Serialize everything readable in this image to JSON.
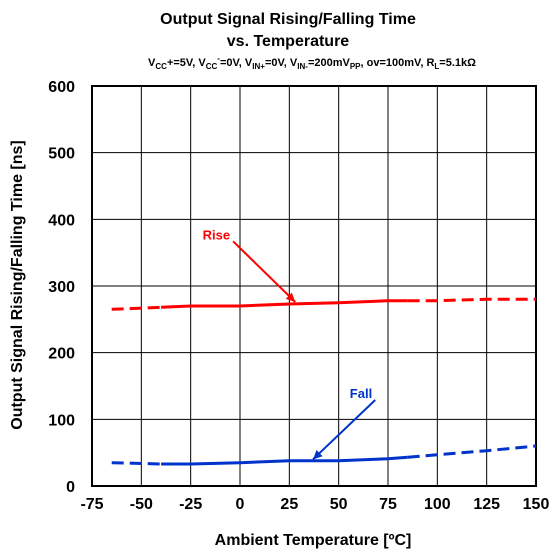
{
  "chart_data": {
    "type": "line",
    "title_line1": "Output Signal Rising/Falling Time",
    "title_line2": "vs. Temperature",
    "conditions": {
      "p1": "V",
      "p1_sub": "CC",
      "p2": "+=5V, V",
      "p2_sub": "CC",
      "p2_sup": "-",
      "p3": "=0V, V",
      "p3_sub": "IN+",
      "p4": "=0V, V",
      "p4_sub": "IN-",
      "p5": "=200mV",
      "p5_sub": "PP",
      "p6": ", ov=100mV, R",
      "p6_sub": "L",
      "p7": "=5.1kΩ"
    },
    "xlabel": "Ambient Temperature [ºC]",
    "ylabel": "Output Signal Rising/Falling Time [ns]",
    "xlim": [
      -75,
      150
    ],
    "ylim": [
      0,
      600
    ],
    "xticks": [
      "-75",
      "-50",
      "-25",
      "0",
      "25",
      "50",
      "75",
      "100",
      "125",
      "150"
    ],
    "yticks": [
      "0",
      "100",
      "200",
      "300",
      "400",
      "500",
      "600"
    ],
    "grid": true,
    "series": [
      {
        "name": "Rise",
        "color": "#ff0000",
        "x": [
          -65,
          -25,
          0,
          25,
          50,
          75,
          85,
          100,
          125,
          150
        ],
        "y": [
          265,
          270,
          270,
          273,
          275,
          278,
          278,
          278,
          280,
          280
        ],
        "solid_range": [
          -40,
          85
        ]
      },
      {
        "name": "Fall",
        "color": "#0033cc",
        "x": [
          -65,
          -40,
          -25,
          0,
          25,
          50,
          75,
          85,
          100,
          125,
          150
        ],
        "y": [
          35,
          33,
          33,
          35,
          38,
          38,
          41,
          43,
          47,
          53,
          60
        ],
        "solid_range": [
          -40,
          85
        ]
      }
    ],
    "annotations": [
      {
        "label": "Rise",
        "color": "#ff0000",
        "text_x": -5,
        "text_y": 370,
        "arrow_to_x": 28,
        "arrow_to_y": 276
      },
      {
        "label": "Fall",
        "color": "#0033cc",
        "text_x": 67,
        "text_y": 132,
        "arrow_to_x": 37,
        "arrow_to_y": 40
      }
    ]
  }
}
